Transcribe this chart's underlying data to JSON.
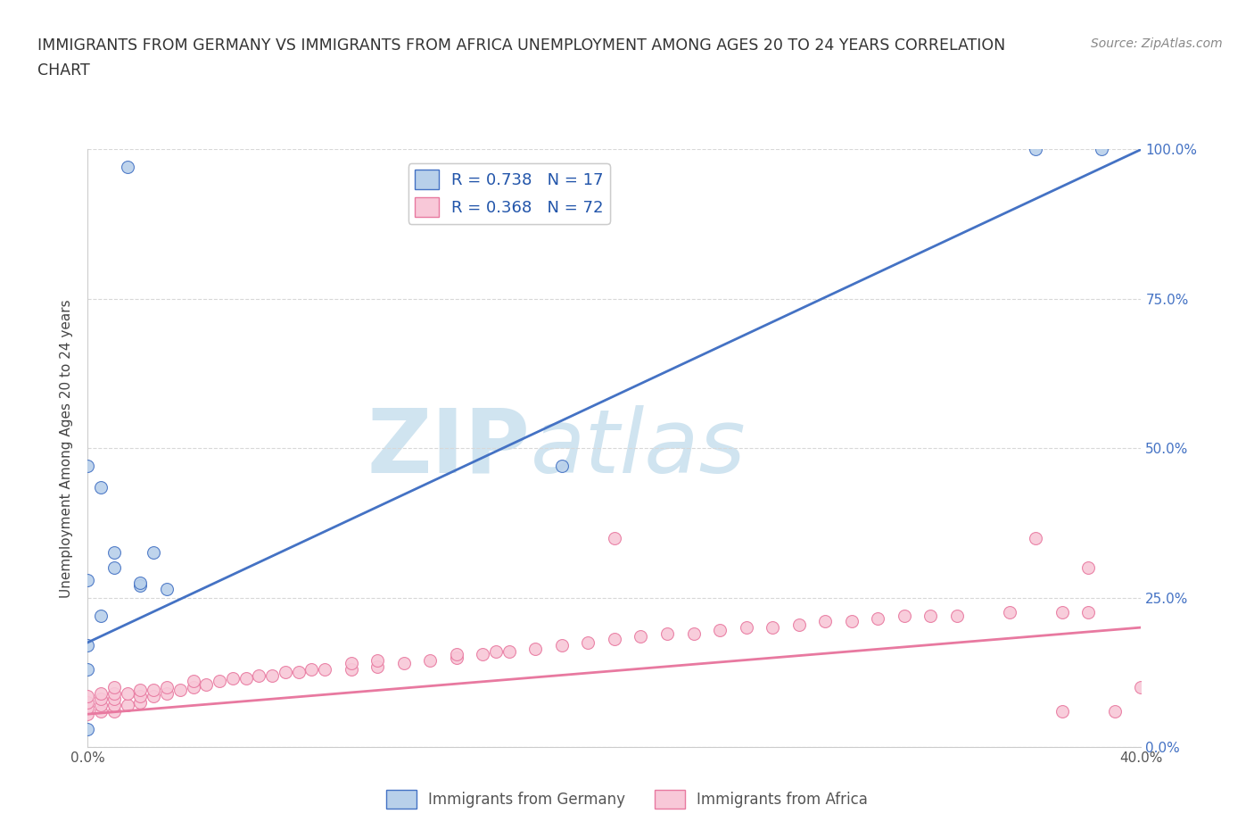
{
  "title_line1": "IMMIGRANTS FROM GERMANY VS IMMIGRANTS FROM AFRICA UNEMPLOYMENT AMONG AGES 20 TO 24 YEARS CORRELATION",
  "title_line2": "CHART",
  "source_text": "Source: ZipAtlas.com",
  "ylabel": "Unemployment Among Ages 20 to 24 years",
  "xlim": [
    0.0,
    0.4
  ],
  "ylim": [
    0.0,
    1.0
  ],
  "xticks": [
    0.0,
    0.1,
    0.2,
    0.3,
    0.4
  ],
  "yticks": [
    0.0,
    0.25,
    0.5,
    0.75,
    1.0
  ],
  "xtick_labels": [
    "0.0%",
    "",
    "",
    "",
    "40.0%"
  ],
  "ytick_labels_right": [
    "0.0%",
    "25.0%",
    "50.0%",
    "75.0%",
    "100.0%"
  ],
  "germany_color": "#b8d0ea",
  "africa_color": "#f8c8d8",
  "germany_edge_color": "#4472c4",
  "africa_edge_color": "#e879a0",
  "germany_line_color": "#4472c4",
  "africa_line_color": "#e879a0",
  "germany_R": 0.738,
  "germany_N": 17,
  "africa_R": 0.368,
  "africa_N": 72,
  "watermark_zip": "ZIP",
  "watermark_atlas": "atlas",
  "watermark_color": "#d0e4f0",
  "legend_color": "#2255aa",
  "background_color": "#ffffff",
  "grid_color": "#d8d8d8",
  "germany_line_x0": 0.0,
  "germany_line_y0": 0.175,
  "germany_line_x1": 0.4,
  "germany_line_y1": 1.0,
  "africa_line_x0": 0.0,
  "africa_line_y0": 0.055,
  "africa_line_x1": 0.4,
  "africa_line_y1": 0.2,
  "germany_scatter_x": [
    0.015,
    0.0,
    0.0,
    0.005,
    0.01,
    0.01,
    0.02,
    0.025,
    0.02,
    0.03,
    0.18,
    0.36,
    0.385,
    0.005,
    0.0,
    0.0,
    0.0
  ],
  "germany_scatter_y": [
    0.97,
    0.47,
    0.28,
    0.435,
    0.3,
    0.325,
    0.27,
    0.325,
    0.275,
    0.265,
    0.47,
    1.0,
    1.0,
    0.22,
    0.17,
    0.13,
    0.03
  ],
  "africa_scatter_x": [
    0.0,
    0.0,
    0.0,
    0.0,
    0.005,
    0.005,
    0.005,
    0.005,
    0.01,
    0.01,
    0.01,
    0.01,
    0.01,
    0.015,
    0.015,
    0.02,
    0.02,
    0.02,
    0.025,
    0.025,
    0.03,
    0.03,
    0.035,
    0.04,
    0.04,
    0.045,
    0.05,
    0.055,
    0.06,
    0.065,
    0.07,
    0.075,
    0.08,
    0.085,
    0.09,
    0.1,
    0.1,
    0.11,
    0.11,
    0.12,
    0.13,
    0.14,
    0.14,
    0.15,
    0.155,
    0.16,
    0.17,
    0.18,
    0.19,
    0.2,
    0.2,
    0.21,
    0.22,
    0.23,
    0.24,
    0.25,
    0.26,
    0.27,
    0.28,
    0.29,
    0.3,
    0.31,
    0.32,
    0.33,
    0.35,
    0.36,
    0.37,
    0.37,
    0.38,
    0.38,
    0.39,
    0.4
  ],
  "africa_scatter_y": [
    0.055,
    0.065,
    0.075,
    0.085,
    0.06,
    0.07,
    0.08,
    0.09,
    0.06,
    0.07,
    0.08,
    0.09,
    0.1,
    0.07,
    0.09,
    0.075,
    0.085,
    0.095,
    0.085,
    0.095,
    0.09,
    0.1,
    0.095,
    0.1,
    0.11,
    0.105,
    0.11,
    0.115,
    0.115,
    0.12,
    0.12,
    0.125,
    0.125,
    0.13,
    0.13,
    0.13,
    0.14,
    0.135,
    0.145,
    0.14,
    0.145,
    0.15,
    0.155,
    0.155,
    0.16,
    0.16,
    0.165,
    0.17,
    0.175,
    0.35,
    0.18,
    0.185,
    0.19,
    0.19,
    0.195,
    0.2,
    0.2,
    0.205,
    0.21,
    0.21,
    0.215,
    0.22,
    0.22,
    0.22,
    0.225,
    0.35,
    0.225,
    0.06,
    0.225,
    0.3,
    0.06,
    0.1
  ]
}
